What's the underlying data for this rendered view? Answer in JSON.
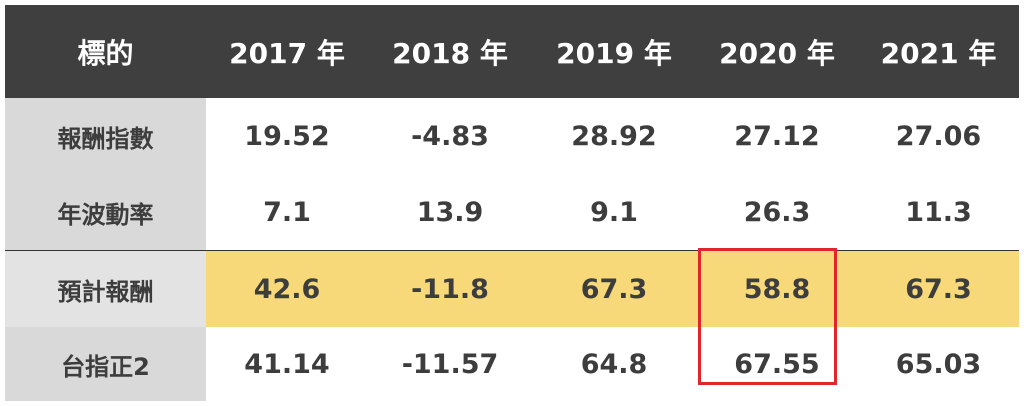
{
  "table": {
    "headers": [
      "標的",
      "2017 年",
      "2018 年",
      "2019 年",
      "2020 年",
      "2021 年"
    ],
    "rows": [
      {
        "label": "報酬指數",
        "values": [
          "19.52",
          "-4.83",
          "28.92",
          "27.12",
          "27.06"
        ]
      },
      {
        "label": "年波動率",
        "values": [
          "7.1",
          "13.9",
          "9.1",
          "26.3",
          "11.3"
        ]
      },
      {
        "label": "預計報酬",
        "values": [
          "42.6",
          "-11.8",
          "67.3",
          "58.8",
          "67.3"
        ]
      },
      {
        "label": "台指正2",
        "values": [
          "41.14",
          "-11.57",
          "64.8",
          "67.55",
          "65.03"
        ]
      }
    ]
  },
  "colors": {
    "header_bg": "#3f3f3f",
    "header_text": "#ffffff",
    "label_bg": "#d9d9d9",
    "highlight_row": "#f7d97a",
    "highlight_box": "#e0262a",
    "body_text": "#3d3d3d"
  }
}
